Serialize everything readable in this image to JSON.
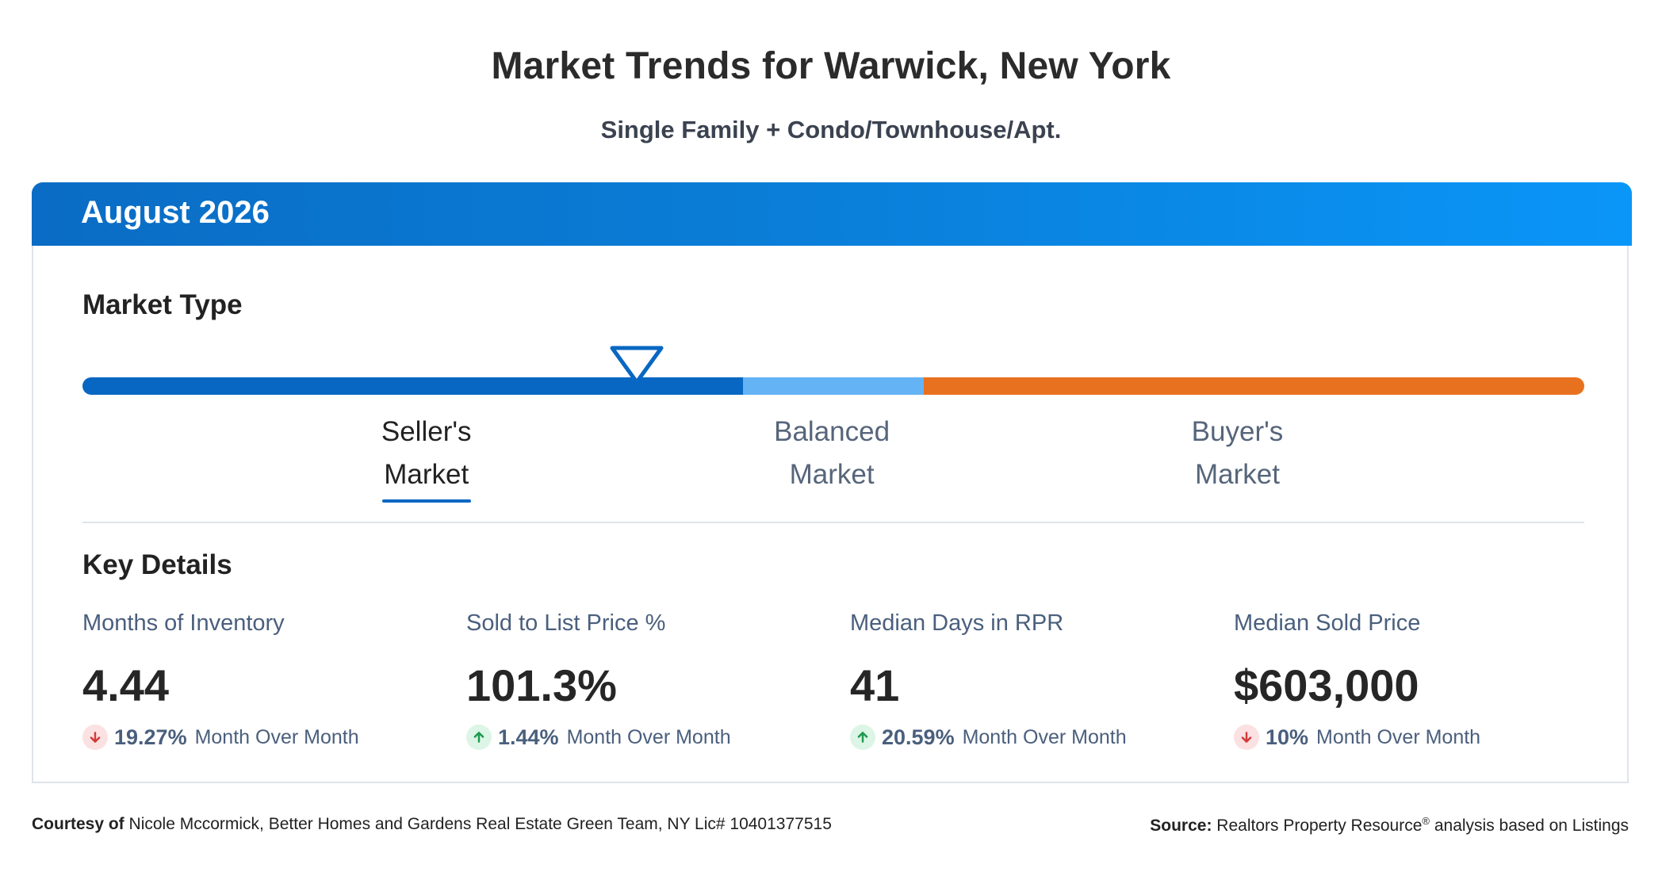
{
  "header": {
    "title": "Market Trends for Warwick, New York",
    "subtitle": "Single Family + Condo/Townhouse/Apt."
  },
  "card": {
    "period": "August 2026",
    "market_type_title": "Market Type",
    "scale": {
      "segments": [
        {
          "name": "seller",
          "fraction": 0.44,
          "color": "#0867c2"
        },
        {
          "name": "balanced",
          "fraction": 0.12,
          "color": "#63b3f5"
        },
        {
          "name": "buyer",
          "fraction": 0.44,
          "color": "#e8711f"
        }
      ],
      "indicator_position_fraction": 0.369,
      "labels": [
        {
          "line1": "Seller's",
          "line2": "Market",
          "active": true
        },
        {
          "line1": "Balanced",
          "line2": "Market",
          "active": false
        },
        {
          "line1": "Buyer's",
          "line2": "Market",
          "active": false
        }
      ]
    },
    "key_details_title": "Key Details",
    "metrics": [
      {
        "label": "Months of Inventory",
        "value": "4.44",
        "direction": "down",
        "change": "19.27%",
        "change_text": "Month Over Month"
      },
      {
        "label": "Sold to List Price %",
        "value": "101.3%",
        "direction": "up",
        "change": "1.44%",
        "change_text": "Month Over Month"
      },
      {
        "label": "Median Days in RPR",
        "value": "41",
        "direction": "up",
        "change": "20.59%",
        "change_text": "Month Over Month"
      },
      {
        "label": "Median Sold Price",
        "value": "$603,000",
        "direction": "down",
        "change": "10%",
        "change_text": "Month Over Month"
      }
    ]
  },
  "footer": {
    "courtesy_label": "Courtesy of",
    "courtesy_text": "Nicole Mccormick, Better Homes and Gardens Real Estate Green Team, NY Lic# 10401377515",
    "source_label": "Source:",
    "source_text_1": "Realtors Property Resource",
    "source_reg": "®",
    "source_text_2": "analysis based on Listings"
  },
  "colors": {
    "up": "#1e9a4f",
    "down": "#d23b3b",
    "accent": "#0867c2"
  }
}
